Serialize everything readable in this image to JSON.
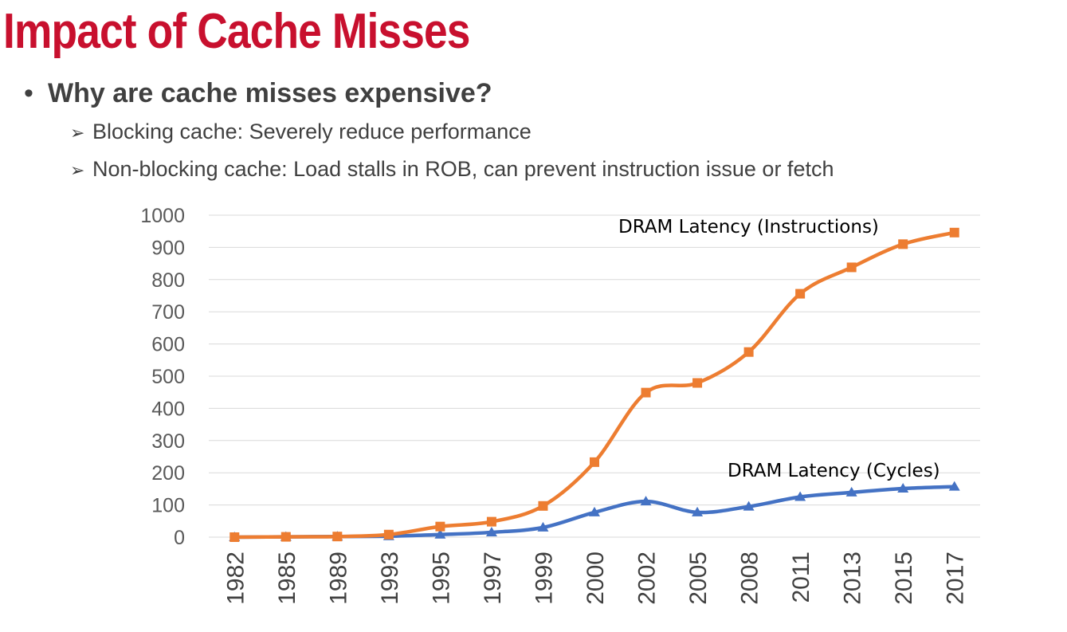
{
  "slide": {
    "title": "Impact of Cache Misses",
    "bullet": "Why are cache misses expensive?",
    "bullet_marker": "•",
    "sub_marker": "➢",
    "sub_bullets": [
      "Blocking cache: Severely reduce performance",
      "Non-blocking cache: Load stalls in ROB, can prevent instruction issue or fetch"
    ]
  },
  "colors": {
    "title": "#c8102e",
    "text": "#404040",
    "orange": "#ed7d31",
    "blue": "#4472c4",
    "grid": "#d9d9d9"
  },
  "chart_data": {
    "type": "line",
    "categories": [
      "1982",
      "1985",
      "1989",
      "1993",
      "1995",
      "1997",
      "1999",
      "2000",
      "2002",
      "2005",
      "2008",
      "2011",
      "2013",
      "2015",
      "2017"
    ],
    "ylim": [
      0,
      1000
    ],
    "yticks": [
      0,
      100,
      200,
      300,
      400,
      500,
      600,
      700,
      800,
      900,
      1000
    ],
    "grid": true,
    "smooth": true,
    "series": [
      {
        "name": "DRAM Latency (Instructions)",
        "marker": "square",
        "color": "#ed7d31",
        "values": [
          0,
          1,
          2,
          8,
          33,
          48,
          97,
          233,
          449,
          479,
          575,
          756,
          838,
          910,
          946
        ]
      },
      {
        "name": "DRAM Latency (Cycles)",
        "marker": "triangle",
        "color": "#4472c4",
        "values": [
          0,
          1,
          2,
          3,
          8,
          15,
          30,
          77,
          111,
          77,
          95,
          125,
          139,
          151,
          157
        ]
      }
    ]
  }
}
